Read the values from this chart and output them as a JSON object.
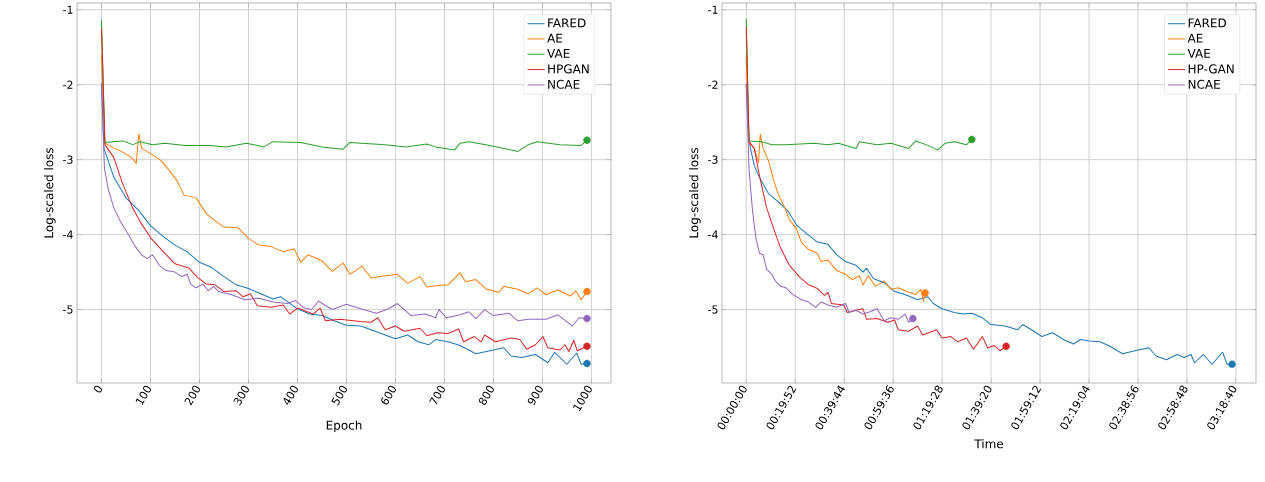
{
  "chart_data": [
    {
      "type": "line",
      "xlabel": "Epoch",
      "ylabel": "Log-scaled loss",
      "xlim": [
        -50,
        1040
      ],
      "ylim": [
        -5.98,
        -0.91
      ],
      "xticks": [
        0,
        100,
        200,
        300,
        400,
        500,
        600,
        700,
        800,
        900,
        1000
      ],
      "yticks": [
        -5,
        -4,
        -3,
        -2,
        -1
      ],
      "grid": true,
      "legend": "top right",
      "series": [
        {
          "name": "FARED",
          "color": "#1f77b4",
          "x": [
            0,
            5,
            25,
            50,
            75,
            100,
            125,
            150,
            175,
            200,
            225,
            250,
            275,
            300,
            325,
            350,
            366,
            400,
            425,
            450,
            475,
            500,
            529,
            550,
            579,
            600,
            625,
            646,
            668,
            682,
            707,
            732,
            764,
            793,
            821,
            836,
            857,
            886,
            911,
            925,
            950,
            970,
            979,
            991
          ],
          "values": [
            -1.98,
            -2.85,
            -3.23,
            -3.51,
            -3.67,
            -3.88,
            -4.02,
            -4.14,
            -4.23,
            -4.37,
            -4.44,
            -4.56,
            -4.67,
            -4.72,
            -4.79,
            -4.86,
            -4.83,
            -4.99,
            -5.06,
            -5.08,
            -5.15,
            -5.21,
            -5.22,
            -5.27,
            -5.34,
            -5.39,
            -5.34,
            -5.43,
            -5.47,
            -5.4,
            -5.43,
            -5.48,
            -5.59,
            -5.55,
            -5.51,
            -5.62,
            -5.64,
            -5.6,
            -5.71,
            -5.57,
            -5.73,
            -5.58,
            -5.73,
            -5.72
          ]
        },
        {
          "name": "AE",
          "color": "#ff7f0e",
          "x": [
            0,
            7,
            21,
            43,
            61,
            71,
            76,
            82,
            100,
            121,
            139,
            154,
            168,
            193,
            214,
            229,
            250,
            279,
            300,
            321,
            346,
            371,
            393,
            407,
            421,
            450,
            471,
            493,
            507,
            532,
            550,
            579,
            604,
            625,
            650,
            664,
            686,
            707,
            732,
            743,
            764,
            786,
            811,
            821,
            850,
            871,
            889,
            907,
            932,
            957,
            968,
            979,
            991
          ],
          "values": [
            -1.6,
            -2.78,
            -2.83,
            -2.9,
            -2.97,
            -3.05,
            -2.66,
            -2.85,
            -2.92,
            -3.01,
            -3.15,
            -3.28,
            -3.47,
            -3.51,
            -3.72,
            -3.8,
            -3.9,
            -3.91,
            -4.05,
            -4.14,
            -4.16,
            -4.23,
            -4.19,
            -4.37,
            -4.27,
            -4.35,
            -4.49,
            -4.38,
            -4.53,
            -4.42,
            -4.58,
            -4.55,
            -4.53,
            -4.65,
            -4.56,
            -4.7,
            -4.68,
            -4.67,
            -4.51,
            -4.63,
            -4.6,
            -4.73,
            -4.77,
            -4.69,
            -4.73,
            -4.79,
            -4.71,
            -4.8,
            -4.74,
            -4.82,
            -4.75,
            -4.87,
            -4.76
          ]
        },
        {
          "name": "VAE",
          "color": "#2ca02c",
          "x": [
            0,
            7,
            43,
            64,
            79,
            104,
            129,
            171,
            221,
            254,
            296,
            332,
            349,
            407,
            450,
            493,
            507,
            579,
            621,
            664,
            682,
            721,
            732,
            750,
            793,
            850,
            871,
            889,
            936,
            979,
            991
          ],
          "values": [
            -1.13,
            -2.77,
            -2.75,
            -2.8,
            -2.76,
            -2.8,
            -2.78,
            -2.81,
            -2.81,
            -2.83,
            -2.78,
            -2.83,
            -2.76,
            -2.77,
            -2.83,
            -2.86,
            -2.77,
            -2.8,
            -2.83,
            -2.79,
            -2.83,
            -2.87,
            -2.78,
            -2.76,
            -2.81,
            -2.89,
            -2.8,
            -2.76,
            -2.8,
            -2.81,
            -2.74
          ]
        },
        {
          "name": "HPGAN",
          "color": "#d62728",
          "x": [
            0,
            7,
            25,
            43,
            64,
            79,
            100,
            125,
            150,
            179,
            196,
            214,
            232,
            250,
            275,
            289,
            304,
            318,
            346,
            371,
            384,
            400,
            432,
            446,
            457,
            486,
            529,
            550,
            564,
            579,
            600,
            618,
            650,
            664,
            686,
            707,
            729,
            739,
            761,
            775,
            782,
            804,
            836,
            854,
            868,
            886,
            901,
            911,
            936,
            946,
            954,
            964,
            971,
            991
          ],
          "values": [
            -1.25,
            -2.8,
            -2.97,
            -3.32,
            -3.65,
            -3.83,
            -4.04,
            -4.22,
            -4.39,
            -4.45,
            -4.57,
            -4.66,
            -4.67,
            -4.76,
            -4.75,
            -4.83,
            -4.79,
            -4.95,
            -4.97,
            -4.94,
            -5.06,
            -4.98,
            -5.06,
            -4.98,
            -5.15,
            -5.13,
            -5.16,
            -5.17,
            -5.11,
            -5.27,
            -5.22,
            -5.29,
            -5.25,
            -5.35,
            -5.31,
            -5.32,
            -5.26,
            -5.43,
            -5.36,
            -5.43,
            -5.34,
            -5.43,
            -5.38,
            -5.4,
            -5.53,
            -5.47,
            -5.36,
            -5.51,
            -5.54,
            -5.47,
            -5.56,
            -5.41,
            -5.55,
            -5.49
          ]
        },
        {
          "name": "NCAE",
          "color": "#9467bd",
          "x": [
            0,
            6,
            14,
            25,
            39,
            54,
            68,
            82,
            93,
            104,
            118,
            132,
            150,
            164,
            175,
            182,
            193,
            207,
            218,
            229,
            239,
            264,
            293,
            321,
            350,
            379,
            396,
            414,
            429,
            443,
            471,
            500,
            529,
            561,
            586,
            604,
            632,
            661,
            682,
            689,
            704,
            732,
            750,
            764,
            782,
            800,
            832,
            850,
            871,
            907,
            932,
            961,
            975,
            991
          ],
          "values": [
            -1.99,
            -3.12,
            -3.4,
            -3.64,
            -3.83,
            -3.99,
            -4.15,
            -4.27,
            -4.32,
            -4.27,
            -4.41,
            -4.48,
            -4.5,
            -4.56,
            -4.53,
            -4.66,
            -4.71,
            -4.66,
            -4.75,
            -4.69,
            -4.76,
            -4.8,
            -4.87,
            -4.85,
            -4.9,
            -4.92,
            -4.88,
            -4.98,
            -5.0,
            -4.89,
            -5.0,
            -4.93,
            -4.99,
            -5.05,
            -4.99,
            -4.92,
            -5.08,
            -5.06,
            -5.11,
            -5.0,
            -5.11,
            -5.07,
            -5.03,
            -5.12,
            -5.0,
            -5.08,
            -5.05,
            -5.15,
            -5.13,
            -5.13,
            -5.07,
            -5.22,
            -5.11,
            -5.12
          ]
        },
        {
          "type": "scatter",
          "color": "#1f77b4",
          "x": [
            991
          ],
          "values": [
            -5.72
          ]
        },
        {
          "type": "scatter",
          "color": "#ff7f0e",
          "x": [
            991
          ],
          "values": [
            -4.76
          ]
        },
        {
          "type": "scatter",
          "color": "#2ca02c",
          "x": [
            991
          ],
          "values": [
            -2.74
          ]
        },
        {
          "type": "scatter",
          "color": "#d62728",
          "x": [
            991
          ],
          "values": [
            -5.49
          ]
        },
        {
          "type": "scatter",
          "color": "#9467bd",
          "x": [
            991
          ],
          "values": [
            -5.12
          ]
        }
      ]
    },
    {
      "type": "line",
      "xlabel": "Time",
      "ylabel": "Log-scaled loss",
      "xlim": [
        -590,
        12410
      ],
      "ylim": [
        -5.98,
        -0.91
      ],
      "xticks": [
        {
          "value": 0,
          "label": "00:00:00"
        },
        {
          "value": 1192,
          "label": "00:19:52"
        },
        {
          "value": 2384,
          "label": "00:39:44"
        },
        {
          "value": 3576,
          "label": "00:59:36"
        },
        {
          "value": 4768,
          "label": "01:19:28"
        },
        {
          "value": 5960,
          "label": "01:39:20"
        },
        {
          "value": 7152,
          "label": "01:59:12"
        },
        {
          "value": 8344,
          "label": "02:19:04"
        },
        {
          "value": 9536,
          "label": "02:38:56"
        },
        {
          "value": 10728,
          "label": "02:58:48"
        },
        {
          "value": 11920,
          "label": "03:18:40"
        }
      ],
      "yticks": [
        -5,
        -4,
        -3,
        -2,
        -1
      ],
      "grid": true,
      "legend": "top right",
      "series": [
        {
          "name": "FARED",
          "color": "#1f77b4",
          "x": [
            0,
            68,
            196,
            324,
            538,
            794,
            1008,
            1221,
            1477,
            1733,
            1990,
            2203,
            2417,
            2673,
            2844,
            2929,
            3100,
            3356,
            3612,
            3868,
            4167,
            4423,
            4551,
            4765,
            5064,
            5277,
            5491,
            5747,
            5960,
            6302,
            6601,
            6729,
            6942,
            7198,
            7455,
            7753,
            7967,
            8138,
            8351,
            8607,
            8821,
            9162,
            9461,
            9803,
            9974,
            10230,
            10486,
            10657,
            10828,
            10913,
            11126,
            11340,
            11596,
            11707,
            11827
          ],
          "values": [
            -1.99,
            -2.76,
            -3.08,
            -3.24,
            -3.45,
            -3.57,
            -3.68,
            -3.87,
            -3.99,
            -4.1,
            -4.13,
            -4.27,
            -4.36,
            -4.41,
            -4.5,
            -4.45,
            -4.59,
            -4.64,
            -4.76,
            -4.8,
            -4.87,
            -4.83,
            -4.92,
            -4.99,
            -5.04,
            -5.06,
            -5.05,
            -5.11,
            -5.2,
            -5.22,
            -5.27,
            -5.2,
            -5.27,
            -5.36,
            -5.31,
            -5.41,
            -5.46,
            -5.4,
            -5.42,
            -5.43,
            -5.48,
            -5.59,
            -5.55,
            -5.51,
            -5.62,
            -5.67,
            -5.6,
            -5.64,
            -5.6,
            -5.71,
            -5.6,
            -5.73,
            -5.57,
            -5.73,
            -5.73
          ]
        },
        {
          "name": "AE",
          "color": "#ff7f0e",
          "x": [
            0,
            68,
            196,
            299,
            342,
            410,
            538,
            666,
            777,
            922,
            1050,
            1221,
            1349,
            1520,
            1733,
            1819,
            1990,
            2203,
            2417,
            2587,
            2758,
            2844,
            2972,
            3142,
            3356,
            3527,
            3698,
            3911,
            4124,
            4252,
            4312,
            4355
          ],
          "values": [
            -1.62,
            -2.78,
            -2.85,
            -3.04,
            -2.66,
            -2.85,
            -3.01,
            -3.27,
            -3.46,
            -3.62,
            -3.8,
            -3.92,
            -4.11,
            -4.2,
            -4.25,
            -4.36,
            -4.34,
            -4.48,
            -4.53,
            -4.6,
            -4.55,
            -4.67,
            -4.55,
            -4.69,
            -4.62,
            -4.73,
            -4.71,
            -4.76,
            -4.8,
            -4.73,
            -4.89,
            -4.78
          ]
        },
        {
          "name": "VAE",
          "color": "#2ca02c",
          "x": [
            0,
            68,
            367,
            623,
            965,
            1306,
            1648,
            1990,
            2246,
            2673,
            2758,
            3185,
            3527,
            3954,
            4124,
            4380,
            4654,
            4850,
            5064,
            5362,
            5491
          ],
          "values": [
            -1.12,
            -2.75,
            -2.76,
            -2.8,
            -2.8,
            -2.79,
            -2.78,
            -2.8,
            -2.78,
            -2.85,
            -2.76,
            -2.8,
            -2.78,
            -2.85,
            -2.75,
            -2.8,
            -2.87,
            -2.78,
            -2.76,
            -2.8,
            -2.73
          ]
        },
        {
          "name": "HP-GAN",
          "color": "#d62728",
          "x": [
            0,
            68,
            196,
            324,
            495,
            666,
            837,
            1050,
            1306,
            1520,
            1733,
            1904,
            1990,
            2075,
            2374,
            2459,
            2673,
            2844,
            2929,
            3185,
            3441,
            3612,
            3698,
            3954,
            4167,
            4295,
            4637,
            4765,
            4978,
            5149,
            5362,
            5533,
            5747,
            5875,
            6046,
            6174,
            6327
          ],
          "values": [
            -1.23,
            -2.76,
            -2.85,
            -3.22,
            -3.64,
            -3.92,
            -4.18,
            -4.41,
            -4.57,
            -4.67,
            -4.72,
            -4.81,
            -4.77,
            -4.92,
            -4.94,
            -5.04,
            -5.01,
            -4.99,
            -5.13,
            -5.12,
            -5.17,
            -5.14,
            -5.27,
            -5.29,
            -5.22,
            -5.34,
            -5.27,
            -5.38,
            -5.36,
            -5.43,
            -5.38,
            -5.53,
            -5.36,
            -5.51,
            -5.48,
            -5.55,
            -5.49
          ]
        },
        {
          "name": "NCAE",
          "color": "#9467bd",
          "x": [
            0,
            68,
            154,
            239,
            324,
            410,
            495,
            623,
            709,
            837,
            965,
            1136,
            1349,
            1520,
            1690,
            1819,
            1990,
            2203,
            2417,
            2502,
            2673,
            2844,
            3014,
            3185,
            3356,
            3527,
            3698,
            3868,
            3954,
            4056
          ],
          "values": [
            -1.98,
            -3.13,
            -3.69,
            -4.06,
            -4.25,
            -4.27,
            -4.46,
            -4.53,
            -4.62,
            -4.69,
            -4.71,
            -4.8,
            -4.87,
            -4.9,
            -4.97,
            -4.9,
            -4.94,
            -4.97,
            -4.92,
            -5.04,
            -5.01,
            -5.06,
            -5.03,
            -4.99,
            -5.15,
            -5.11,
            -5.13,
            -5.06,
            -5.17,
            -5.12
          ]
        },
        {
          "type": "scatter",
          "color": "#1f77b4",
          "x": [
            11827
          ],
          "values": [
            -5.73
          ]
        },
        {
          "type": "scatter",
          "color": "#ff7f0e",
          "x": [
            4355
          ],
          "values": [
            -4.78
          ]
        },
        {
          "type": "scatter",
          "color": "#2ca02c",
          "x": [
            5491
          ],
          "values": [
            -2.73
          ]
        },
        {
          "type": "scatter",
          "color": "#d62728",
          "x": [
            6327
          ],
          "values": [
            -5.49
          ]
        },
        {
          "type": "scatter",
          "color": "#9467bd",
          "x": [
            4056
          ],
          "values": [
            -5.12
          ]
        }
      ]
    }
  ]
}
